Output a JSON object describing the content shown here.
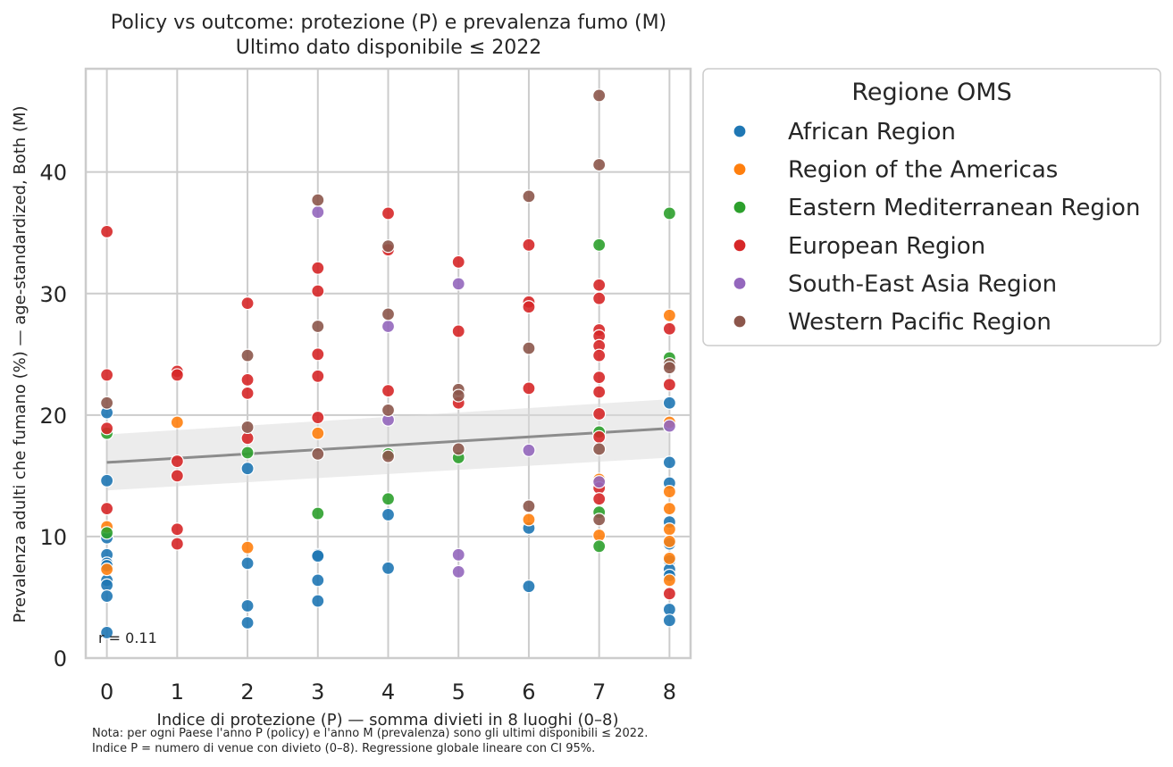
{
  "chart_data": {
    "type": "scatter",
    "title": "Policy vs outcome: protezione (P) e prevalenza fumo (M)",
    "subtitle": "Ultimo dato disponibile ≤ 2022",
    "xlabel": "Indice di protezione (P) — somma divieti in 8 luoghi (0–8)",
    "ylabel": "Prevalenza adulti che fumano (%) — age-standardized, Both (M)",
    "xlim": [
      -0.3,
      8.3
    ],
    "ylim": [
      0,
      48.5
    ],
    "xticks": [
      "0",
      "1",
      "2",
      "3",
      "4",
      "5",
      "6",
      "7",
      "8"
    ],
    "yticks": [
      "0",
      "10",
      "20",
      "30",
      "40"
    ],
    "grid": true,
    "annotation": "r = 0.11",
    "notes": [
      "Nota: per ogni Paese l'anno P (policy) e l'anno M (prevalenza) sono gli ultimi disponibili ≤ 2022.",
      "Indice P = numero di venue con divieto (0–8). Regressione globale lineare con CI 95%."
    ],
    "regression": {
      "intercept": 16.1,
      "slope": 0.35,
      "ci_lower": [
        13.8,
        16.5
      ],
      "ci_upper": [
        18.4,
        21.3
      ]
    },
    "legend": {
      "title": "Regione OMS",
      "placement": "outside-right"
    },
    "series": [
      {
        "name": "African Region",
        "color": "#1f77b4",
        "points": [
          [
            0,
            20.2
          ],
          [
            0,
            14.6
          ],
          [
            0,
            9.9
          ],
          [
            0,
            8.5
          ],
          [
            0,
            7.8
          ],
          [
            0,
            7.6
          ],
          [
            0,
            6.4
          ],
          [
            0,
            6.0
          ],
          [
            0,
            5.1
          ],
          [
            0,
            2.1
          ],
          [
            2,
            15.6
          ],
          [
            2,
            7.8
          ],
          [
            2,
            4.3
          ],
          [
            2,
            2.9
          ],
          [
            3,
            8.5
          ],
          [
            3,
            8.4
          ],
          [
            3,
            6.4
          ],
          [
            3,
            4.7
          ],
          [
            4,
            11.8
          ],
          [
            4,
            7.4
          ],
          [
            6,
            10.7
          ],
          [
            6,
            5.9
          ],
          [
            8,
            21.0
          ],
          [
            8,
            16.1
          ],
          [
            8,
            14.4
          ],
          [
            8,
            11.2
          ],
          [
            8,
            9.4
          ],
          [
            8,
            8.0
          ],
          [
            8,
            7.3
          ],
          [
            8,
            6.8
          ],
          [
            8,
            4.0
          ],
          [
            8,
            3.1
          ]
        ]
      },
      {
        "name": "Region of the Americas",
        "color": "#ff7f0e",
        "points": [
          [
            0,
            10.8
          ],
          [
            0,
            7.3
          ],
          [
            1,
            19.4
          ],
          [
            2,
            9.1
          ],
          [
            3,
            18.5
          ],
          [
            6,
            11.4
          ],
          [
            7,
            14.7
          ],
          [
            7,
            10.1
          ],
          [
            8,
            28.2
          ],
          [
            8,
            19.4
          ],
          [
            8,
            13.7
          ],
          [
            8,
            12.3
          ],
          [
            8,
            10.6
          ],
          [
            8,
            9.6
          ],
          [
            8,
            8.2
          ],
          [
            8,
            6.4
          ]
        ]
      },
      {
        "name": "Eastern Mediterranean Region",
        "color": "#2ca02c",
        "points": [
          [
            0,
            18.5
          ],
          [
            0,
            10.3
          ],
          [
            2,
            16.9
          ],
          [
            3,
            11.9
          ],
          [
            4,
            16.8
          ],
          [
            4,
            13.1
          ],
          [
            5,
            16.5
          ],
          [
            7,
            34.0
          ],
          [
            7,
            18.6
          ],
          [
            7,
            12.0
          ],
          [
            7,
            9.2
          ],
          [
            8,
            36.6
          ],
          [
            8,
            24.7
          ]
        ]
      },
      {
        "name": "European Region",
        "color": "#d62728",
        "points": [
          [
            0,
            35.1
          ],
          [
            0,
            23.3
          ],
          [
            0,
            18.9
          ],
          [
            0,
            12.3
          ],
          [
            1,
            23.6
          ],
          [
            1,
            23.3
          ],
          [
            1,
            16.2
          ],
          [
            1,
            15.0
          ],
          [
            1,
            10.6
          ],
          [
            1,
            9.4
          ],
          [
            2,
            29.2
          ],
          [
            2,
            22.9
          ],
          [
            2,
            21.8
          ],
          [
            2,
            18.1
          ],
          [
            3,
            32.1
          ],
          [
            3,
            30.2
          ],
          [
            3,
            25.0
          ],
          [
            3,
            23.2
          ],
          [
            3,
            19.8
          ],
          [
            4,
            36.6
          ],
          [
            4,
            33.6
          ],
          [
            4,
            22.0
          ],
          [
            5,
            32.6
          ],
          [
            5,
            26.9
          ],
          [
            5,
            21.0
          ],
          [
            6,
            34.0
          ],
          [
            6,
            29.3
          ],
          [
            6,
            28.9
          ],
          [
            6,
            22.2
          ],
          [
            7,
            30.7
          ],
          [
            7,
            29.6
          ],
          [
            7,
            27.0
          ],
          [
            7,
            26.5
          ],
          [
            7,
            25.7
          ],
          [
            7,
            24.9
          ],
          [
            7,
            23.1
          ],
          [
            7,
            21.9
          ],
          [
            7,
            20.1
          ],
          [
            7,
            18.2
          ],
          [
            7,
            14.0
          ],
          [
            7,
            13.1
          ],
          [
            8,
            27.1
          ],
          [
            8,
            22.5
          ],
          [
            8,
            5.3
          ]
        ]
      },
      {
        "name": "South-East Asia Region",
        "color": "#9467bd",
        "points": [
          [
            3,
            36.7
          ],
          [
            4,
            27.3
          ],
          [
            4,
            19.6
          ],
          [
            5,
            30.8
          ],
          [
            5,
            8.5
          ],
          [
            5,
            7.1
          ],
          [
            6,
            17.1
          ],
          [
            7,
            14.5
          ],
          [
            8,
            19.1
          ]
        ]
      },
      {
        "name": "Western Pacific Region",
        "color": "#8c564b",
        "points": [
          [
            0,
            21.0
          ],
          [
            2,
            24.9
          ],
          [
            2,
            19.0
          ],
          [
            3,
            37.7
          ],
          [
            3,
            27.3
          ],
          [
            3,
            16.8
          ],
          [
            4,
            33.9
          ],
          [
            4,
            28.3
          ],
          [
            4,
            20.4
          ],
          [
            4,
            16.6
          ],
          [
            5,
            22.1
          ],
          [
            5,
            21.6
          ],
          [
            5,
            17.2
          ],
          [
            6,
            38.0
          ],
          [
            6,
            25.5
          ],
          [
            6,
            12.5
          ],
          [
            7,
            46.3
          ],
          [
            7,
            40.6
          ],
          [
            7,
            17.2
          ],
          [
            7,
            11.4
          ],
          [
            8,
            24.2
          ],
          [
            8,
            23.9
          ]
        ]
      }
    ]
  }
}
